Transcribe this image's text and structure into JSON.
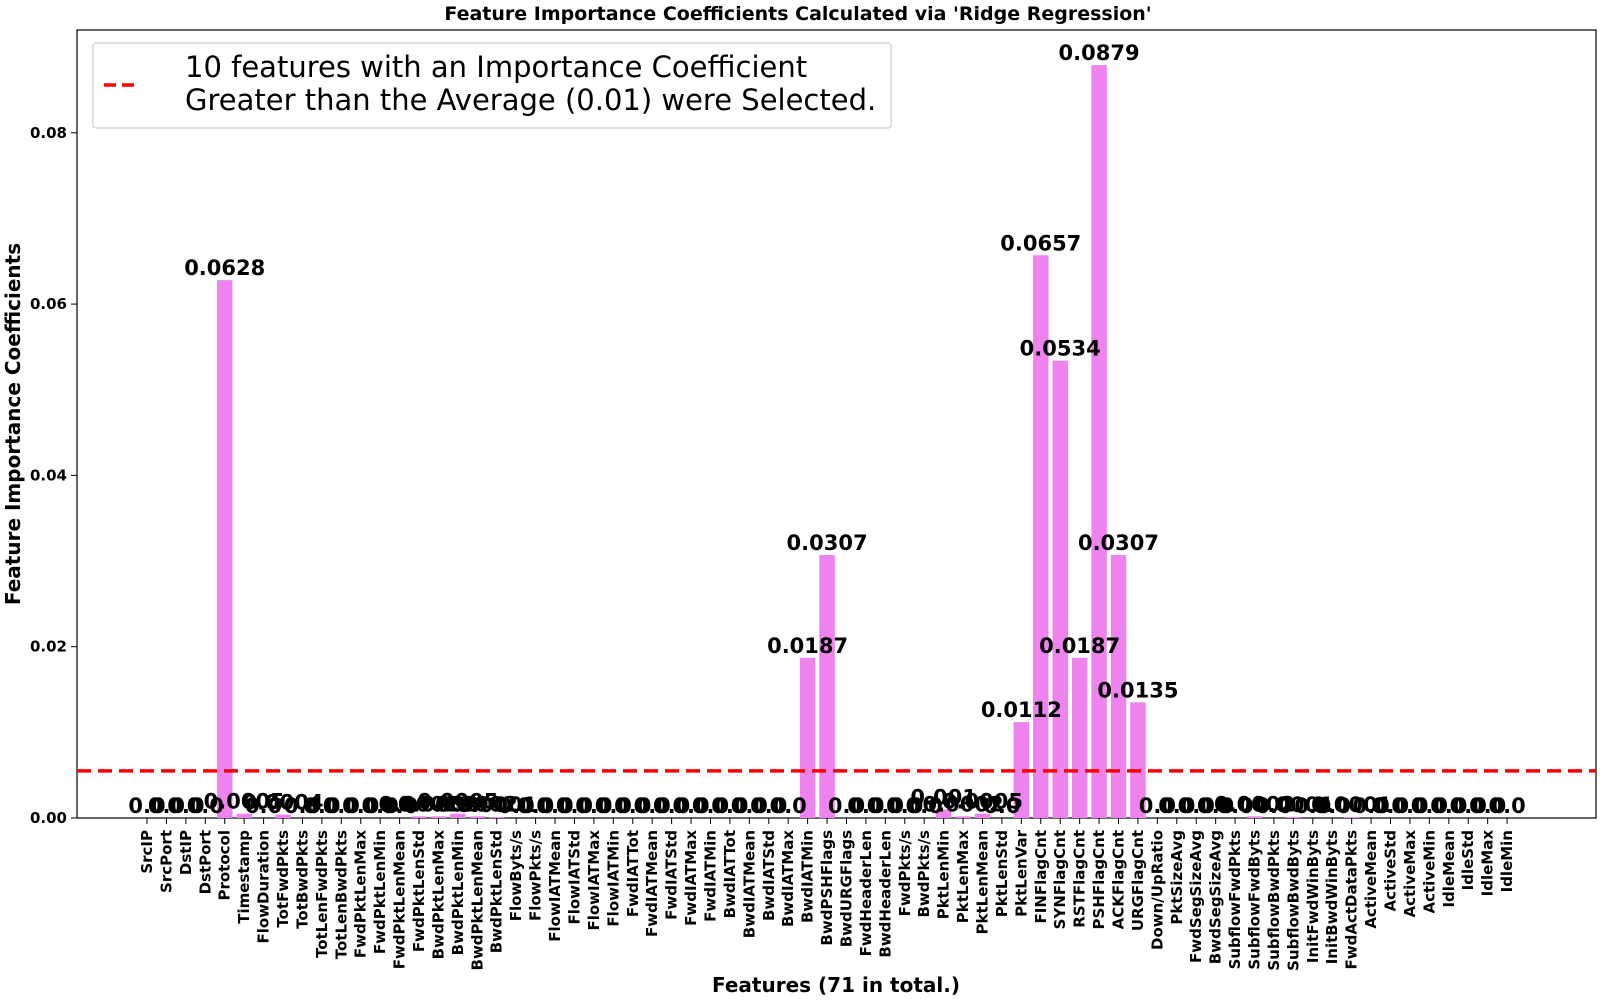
{
  "chart_data": {
    "type": "bar",
    "title": "Feature Importance Coefficients Calculated via 'Ridge Regression'",
    "xlabel": "Features (71 in total.)",
    "ylabel": "Feature Importance Coefficients",
    "ylim": [
      0,
      0.092
    ],
    "yticks": [
      0.0,
      0.02,
      0.04,
      0.06,
      0.08
    ],
    "ytick_labels": [
      "0.00",
      "0.02",
      "0.04",
      "0.06",
      "0.08"
    ],
    "bar_color": "#ee82ee",
    "grid": false,
    "categories": [
      "SrcIP",
      "SrcPort",
      "DstIP",
      "DstPort",
      "Protocol",
      "Timestamp",
      "FlowDuration",
      "TotFwdPkts",
      "TotBwdPkts",
      "TotLenFwdPkts",
      "TotLenBwdPkts",
      "FwdPktLenMax",
      "FwdPktLenMin",
      "FwdPktLenMean",
      "FwdPktLenStd",
      "BwdPktLenMax",
      "BwdPktLenMin",
      "BwdPktLenMean",
      "BwdPktLenStd",
      "FlowByts/s",
      "FlowPkts/s",
      "FlowIATMean",
      "FlowIATStd",
      "FlowIATMax",
      "FlowIATMin",
      "FwdIATTot",
      "FwdIATMean",
      "FwdIATStd",
      "FwdIATMax",
      "FwdIATMin",
      "BwdIATTot",
      "BwdIATMean",
      "BwdIATStd",
      "BwdIATMax",
      "BwdIATMin",
      "BwdPSHFlags",
      "BwdURGFlags",
      "FwdHeaderLen",
      "BwdHeaderLen",
      "FwdPkts/s",
      "BwdPkts/s",
      "PktLenMin",
      "PktLenMax",
      "PktLenMean",
      "PktLenStd",
      "PktLenVar",
      "FINFlagCnt",
      "SYNFlagCnt",
      "RSTFlagCnt",
      "PSHFlagCnt",
      "ACKFlagCnt",
      "URGFlagCnt",
      "Down/UpRatio",
      "PktSizeAvg",
      "FwdSegSizeAvg",
      "BwdSegSizeAvg",
      "SubflowFwdPkts",
      "SubflowFwdByts",
      "SubflowBwdPkts",
      "SubflowBwdByts",
      "InitFwdWinByts",
      "InitBwdWinByts",
      "FwdActDataPkts",
      "ActiveMean",
      "ActiveStd",
      "ActiveMax",
      "ActiveMin",
      "IdleMean",
      "IdleStd",
      "IdleMax",
      "IdleMin"
    ],
    "values": [
      0.0,
      0.0,
      0.0,
      0.0,
      0.0628,
      0.0005,
      0.0,
      0.0004,
      0.0,
      0.0,
      0.0,
      0.0,
      0.0,
      0.0,
      0.0002,
      0.0002,
      0.0005,
      0.0002,
      0.0001,
      0.0,
      0.0,
      0.0,
      0.0,
      0.0,
      0.0,
      0.0,
      0.0,
      0.0,
      0.0,
      0.0,
      0.0,
      0.0,
      0.0,
      0.0,
      0.0187,
      0.0307,
      0.0,
      0.0,
      0.0,
      0.0,
      0.0,
      0.001,
      0.0002,
      0.0005,
      0.0,
      0.0112,
      0.0657,
      0.0534,
      0.0187,
      0.0879,
      0.0307,
      0.0135,
      0.0,
      0.0,
      0.0,
      0.0,
      0.0,
      0.0002,
      0.0,
      0.0001,
      0.0,
      0.0,
      0.0001,
      0.0,
      0.0,
      0.0,
      0.0,
      0.0,
      0.0,
      0.0,
      0.0
    ],
    "data_labels": [
      "0.0",
      "0.0",
      "0.0",
      "0.0",
      "0.0628",
      "0.0005",
      "0.0",
      "0.0004",
      "0.0",
      "0.0",
      "0.0",
      "0.0",
      "0.0",
      "0.0",
      "0.0002",
      "0.0002",
      "0.0005",
      "0.0002",
      "0.0001",
      "0.0",
      "0.0",
      "0.0",
      "0.0",
      "0.0",
      "0.0",
      "0.0",
      "0.0",
      "0.0",
      "0.0",
      "0.0",
      "0.0",
      "0.0",
      "0.0",
      "0.0",
      "0.0187",
      "0.0307",
      "0.0",
      "0.0",
      "0.0",
      "0.0",
      "0.0",
      "0.001",
      "0.0002",
      "0.0005",
      "0.0",
      "0.0112",
      "0.0657",
      "0.0534",
      "0.0187",
      "0.0879",
      "0.0307",
      "0.0135",
      "0.0",
      "0.0",
      "0.0",
      "0.0",
      "0.0",
      "0.0002",
      "0.0",
      "0.0001",
      "0.0",
      "0.0",
      "0.0001",
      "0.0",
      "0.0",
      "0.0",
      "0.0",
      "0.0",
      "0.0",
      "0.0",
      "0.0"
    ],
    "average_line": {
      "value": 0.0055,
      "color": "#ff0000",
      "style": "dashed"
    },
    "legend": {
      "placement": "top-left",
      "entries": [
        "10 features with an Importance Coefficient\nGreater than the Average (0.01) were Selected."
      ]
    }
  }
}
